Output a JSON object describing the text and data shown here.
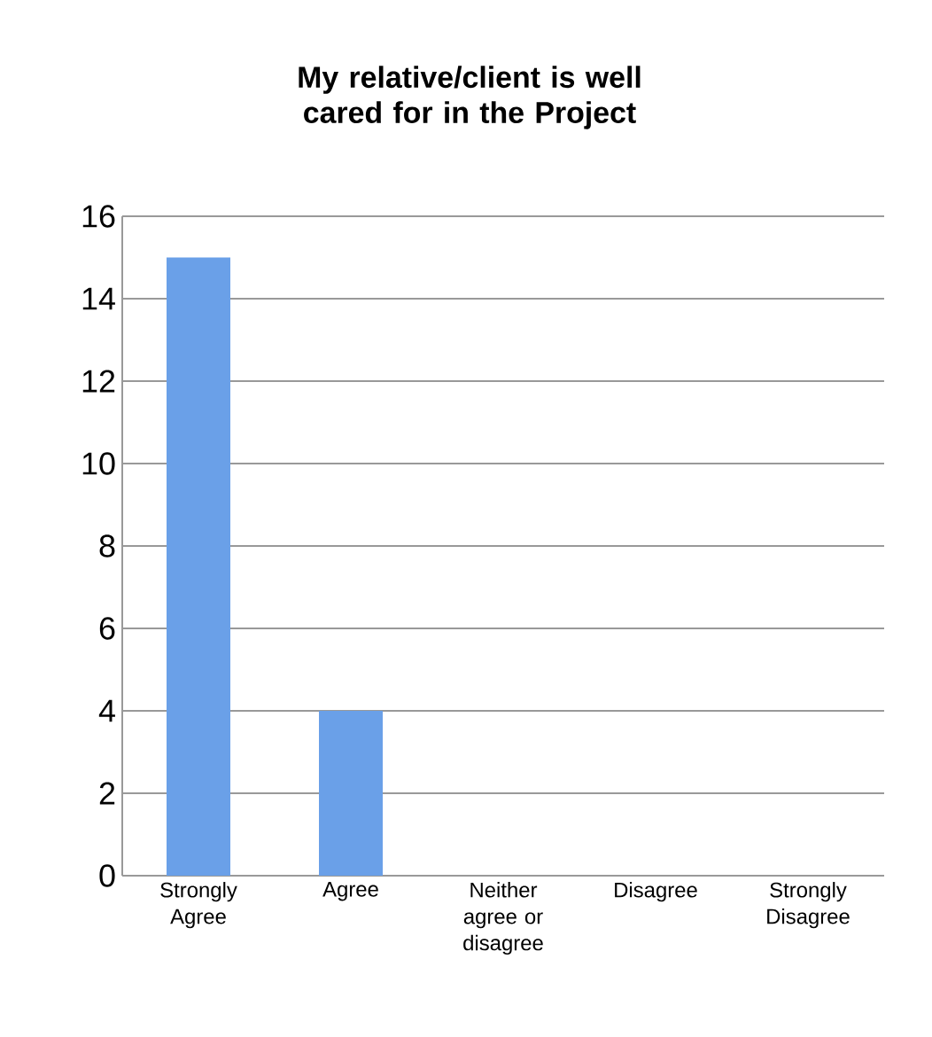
{
  "chart_data": {
    "type": "bar",
    "title": "My relative/client is well cared for in the Project",
    "categories": [
      "Strongly Agree",
      "Agree",
      "Neither agree or disagree",
      "Disagree",
      "Strongly Disagree"
    ],
    "values": [
      15,
      4,
      0,
      0,
      0
    ],
    "color": "#6aa0e8",
    "ylim": [
      0,
      16
    ],
    "yticks": [
      0,
      2,
      4,
      6,
      8,
      10,
      12,
      14,
      16
    ],
    "grid": "y"
  }
}
